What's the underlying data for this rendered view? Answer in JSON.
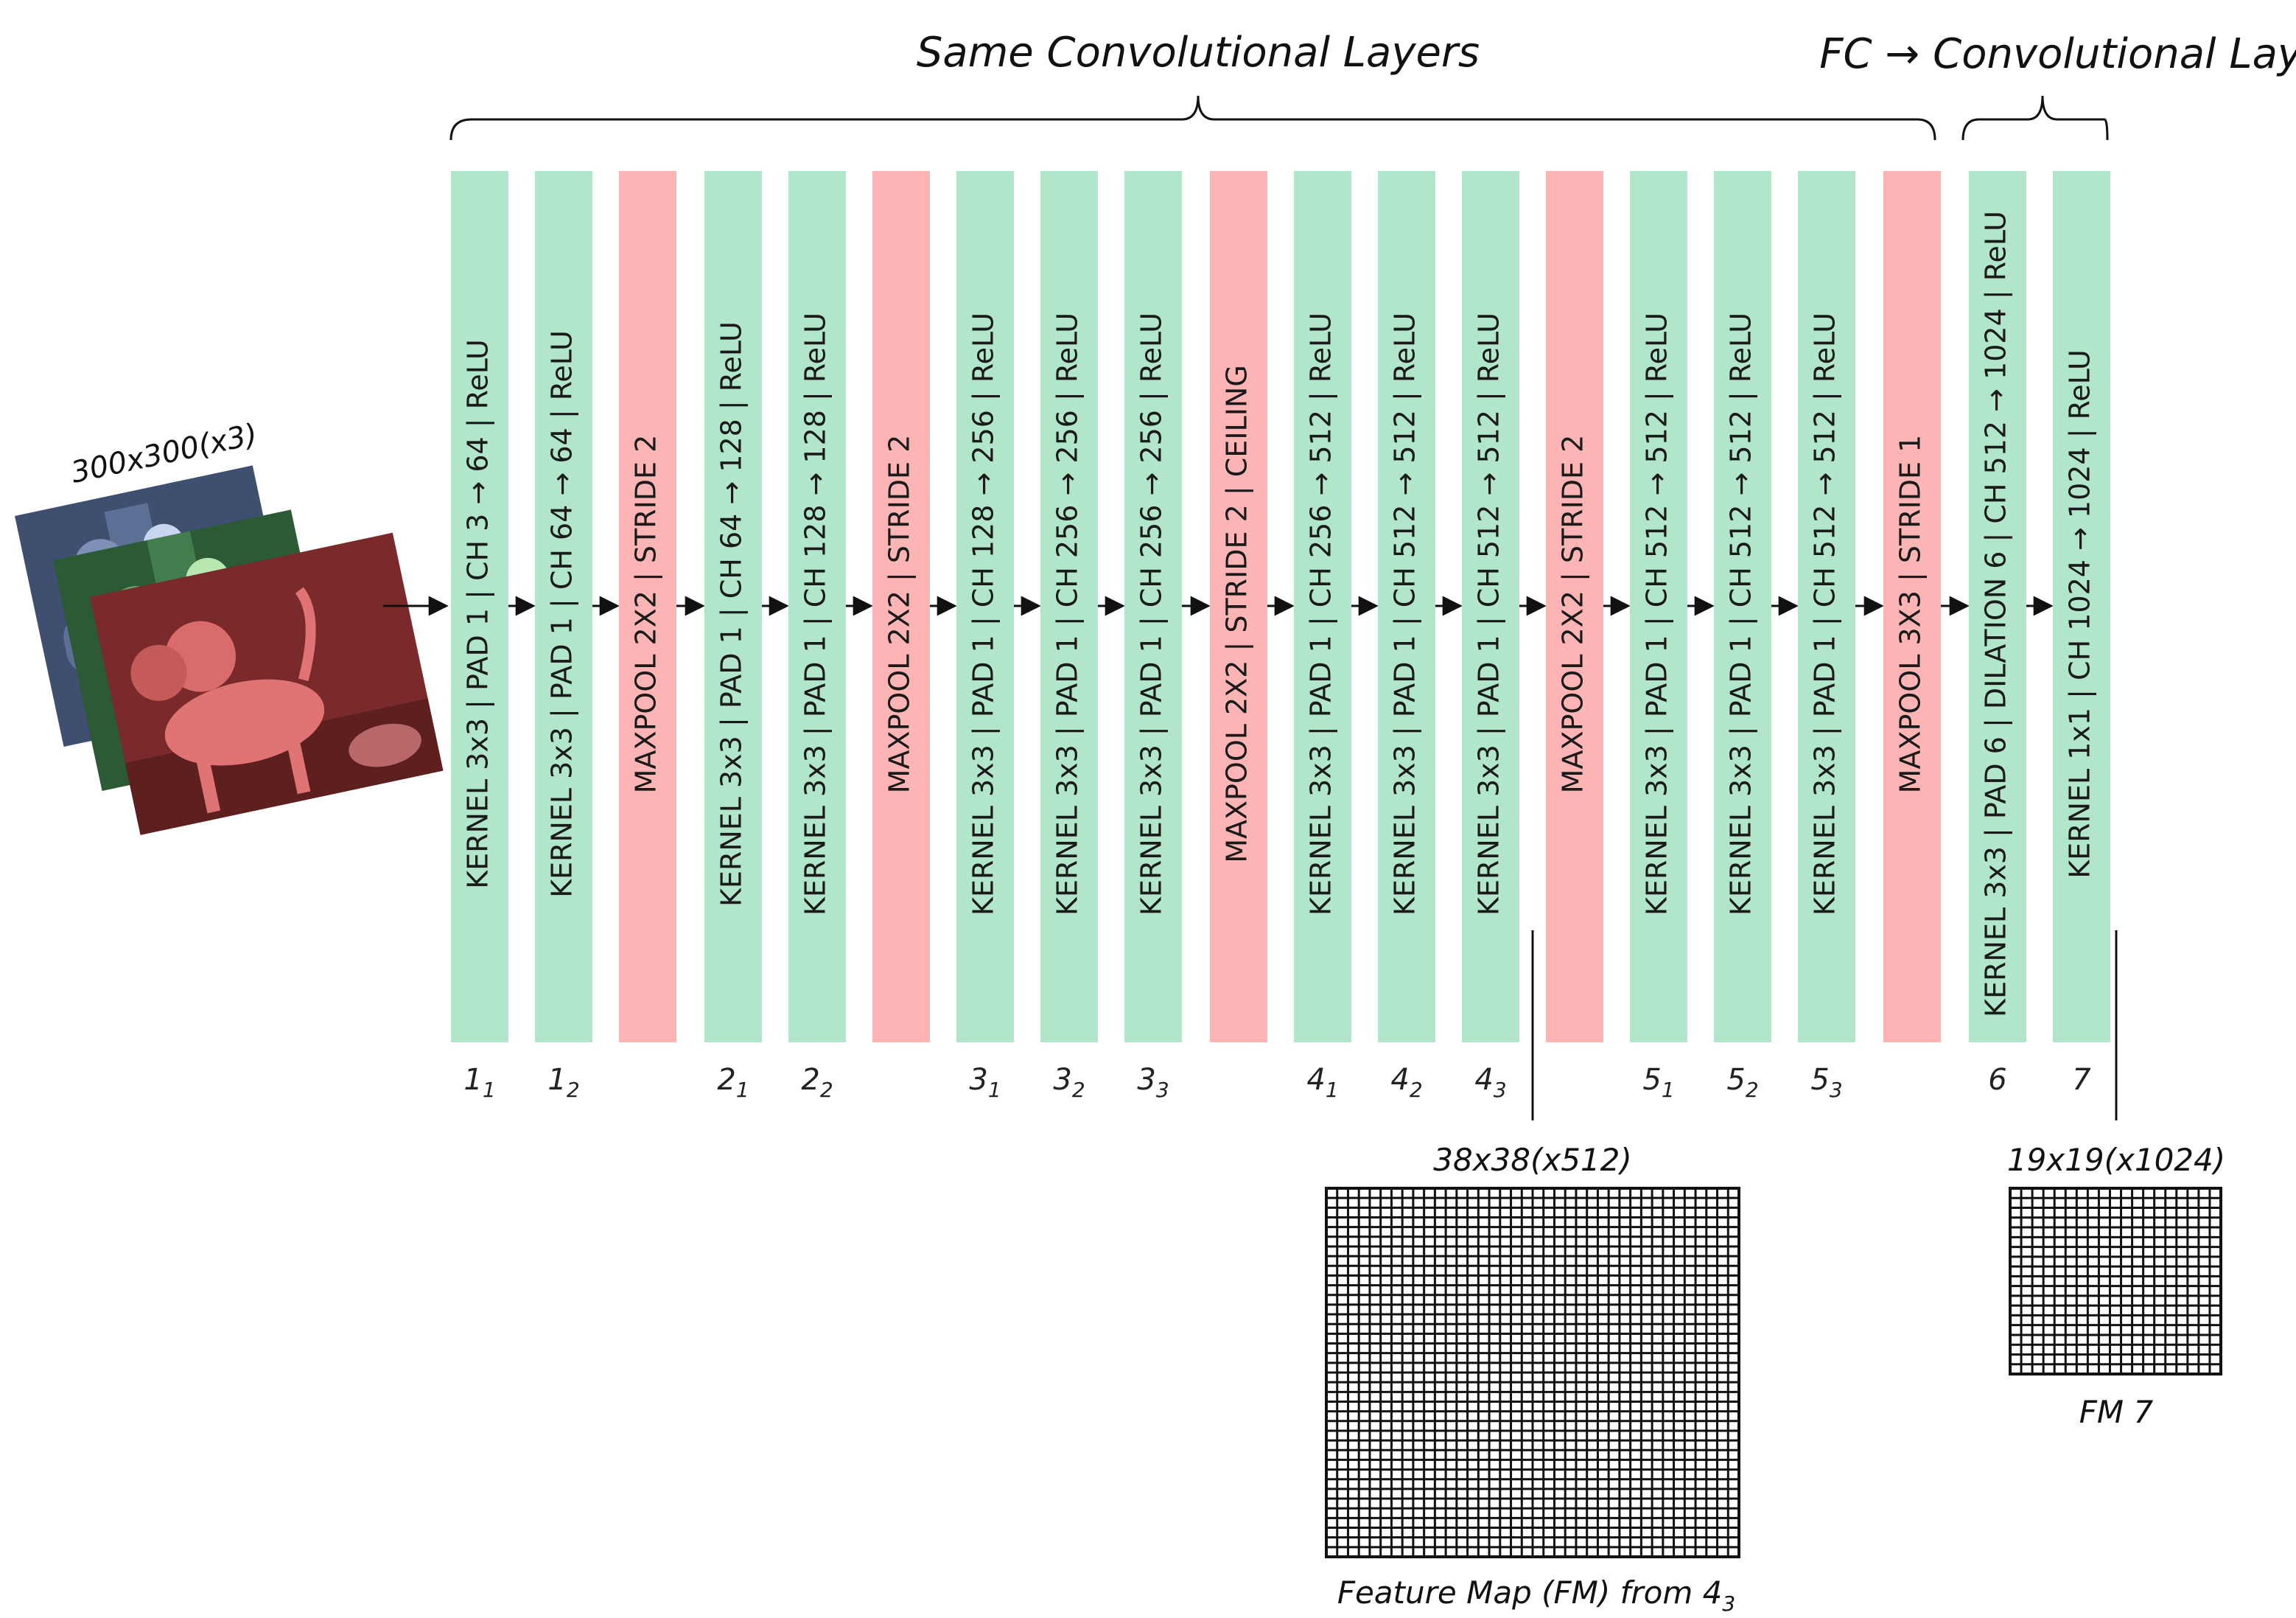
{
  "headers": {
    "same_conv": "Same Convolutional Layers",
    "fc_conv": "FC → Convolutional Layers"
  },
  "input": {
    "label": "300x300(x3)"
  },
  "colors": {
    "conv": "#b1e6cb",
    "pool": "#fcb4b4",
    "line": "#111111"
  },
  "layers": [
    {
      "type": "conv",
      "text": "KERNEL 3x3 | PAD 1 | CH 3 → 64 | ReLU",
      "index_main": "1",
      "index_sub": "1"
    },
    {
      "type": "conv",
      "text": "KERNEL 3x3 | PAD 1 | CH 64 → 64 | ReLU",
      "index_main": "1",
      "index_sub": "2"
    },
    {
      "type": "pool",
      "text": "MAXPOOL 2X2 | STRIDE 2",
      "index_main": "",
      "index_sub": ""
    },
    {
      "type": "conv",
      "text": "KERNEL 3x3 | PAD 1 | CH 64 → 128 | ReLU",
      "index_main": "2",
      "index_sub": "1"
    },
    {
      "type": "conv",
      "text": "KERNEL 3x3 | PAD 1 | CH 128 → 128 | ReLU",
      "index_main": "2",
      "index_sub": "2"
    },
    {
      "type": "pool",
      "text": "MAXPOOL 2X2 | STRIDE 2",
      "index_main": "",
      "index_sub": ""
    },
    {
      "type": "conv",
      "text": "KERNEL 3x3 | PAD 1 | CH 128 → 256 | ReLU",
      "index_main": "3",
      "index_sub": "1"
    },
    {
      "type": "conv",
      "text": "KERNEL 3x3 | PAD 1 | CH 256 → 256 | ReLU",
      "index_main": "3",
      "index_sub": "2"
    },
    {
      "type": "conv",
      "text": "KERNEL 3x3 | PAD 1 | CH 256 → 256 | ReLU",
      "index_main": "3",
      "index_sub": "3"
    },
    {
      "type": "pool",
      "text": "MAXPOOL 2X2 | STRIDE 2 | CEILING",
      "index_main": "",
      "index_sub": ""
    },
    {
      "type": "conv",
      "text": "KERNEL 3x3 | PAD 1 | CH 256 → 512 | ReLU",
      "index_main": "4",
      "index_sub": "1"
    },
    {
      "type": "conv",
      "text": "KERNEL 3x3 | PAD 1 | CH 512 → 512 | ReLU",
      "index_main": "4",
      "index_sub": "2"
    },
    {
      "type": "conv",
      "text": "KERNEL 3x3 | PAD 1 | CH 512 → 512 | ReLU",
      "index_main": "4",
      "index_sub": "3"
    },
    {
      "type": "pool",
      "text": "MAXPOOL 2X2 | STRIDE 2",
      "index_main": "",
      "index_sub": ""
    },
    {
      "type": "conv",
      "text": "KERNEL 3x3 | PAD 1 | CH 512 → 512 | ReLU",
      "index_main": "5",
      "index_sub": "1"
    },
    {
      "type": "conv",
      "text": "KERNEL 3x3 | PAD 1 | CH 512 → 512 | ReLU",
      "index_main": "5",
      "index_sub": "2"
    },
    {
      "type": "conv",
      "text": "KERNEL 3x3 | PAD 1 | CH 512 → 512 | ReLU",
      "index_main": "5",
      "index_sub": "3"
    },
    {
      "type": "pool",
      "text": "MAXPOOL 3X3 | STRIDE 1",
      "index_main": "",
      "index_sub": ""
    },
    {
      "type": "conv",
      "text": "KERNEL 3x3 | PAD 6 | DILATION 6 | CH 512 → 1024 | ReLU",
      "index_main": "6",
      "index_sub": ""
    },
    {
      "type": "conv",
      "text": "KERNEL 1x1 | CH 1024 → 1024 | ReLU",
      "index_main": "7",
      "index_sub": ""
    }
  ],
  "feature_maps": [
    {
      "size_label": "38x38(x512)",
      "caption_main": "Feature Map (FM) from 4",
      "caption_sub": "3",
      "grid_cells": 38
    },
    {
      "size_label": "19x19(x1024)",
      "caption_main": "FM 7",
      "caption_sub": "",
      "grid_cells": 19
    }
  ]
}
